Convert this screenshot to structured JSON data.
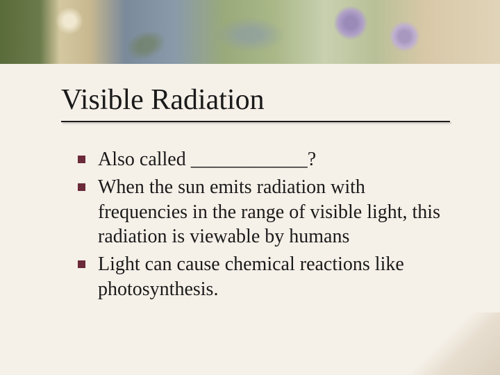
{
  "decoration": {
    "top_band_colors": [
      "#5a6b3a",
      "#6b7a4a",
      "#d4c8a0",
      "#7a8a9a",
      "#9aaa7a",
      "#c8d0b0",
      "#e0d4b8"
    ],
    "flower_colors": [
      "#9a8ab8",
      "#a898c0"
    ],
    "background_color": "#f5f0e8"
  },
  "slide": {
    "title": "Visible Radiation",
    "title_fontsize": 42,
    "title_color": "#1a1a1a",
    "underline_color": "#1a1a1a",
    "bullet_color": "#6b2a3a",
    "bullet_size": 11,
    "body_fontsize": 28,
    "body_color": "#1a1a1a",
    "bullets": [
      "Also called ____________?",
      "When the sun emits radiation with frequencies in the range of visible light, this radiation is viewable by humans",
      "Light can cause chemical reactions like photosynthesis."
    ]
  }
}
